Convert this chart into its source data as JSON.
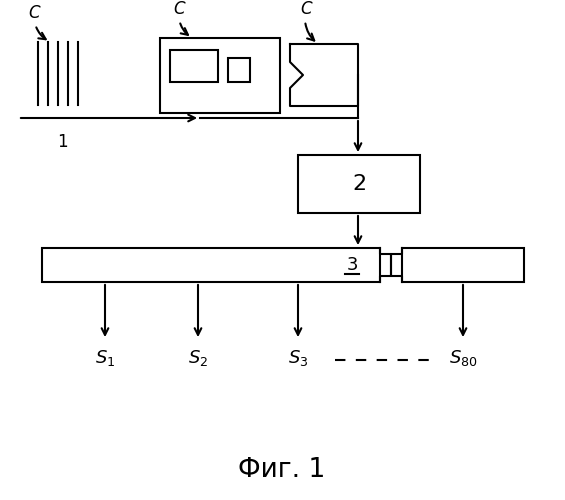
{
  "bg_color": "#ffffff",
  "line_color": "#000000",
  "fig_caption": "Фиг. 1",
  "box2_label": "2",
  "box3_label": "3",
  "label1": "1",
  "label_C": "C"
}
